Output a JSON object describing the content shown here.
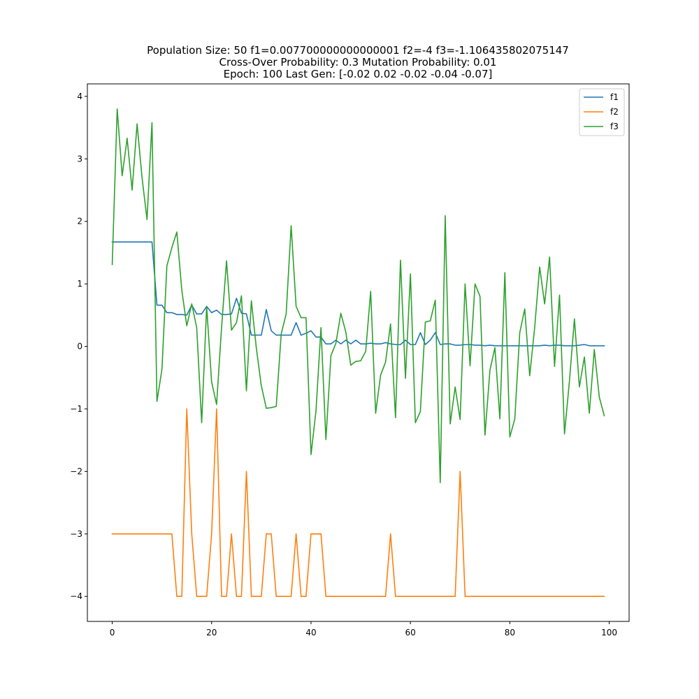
{
  "chart_data": {
    "type": "line",
    "title_lines": [
      "Population Size: 50 f1=0.007700000000000001 f2=-4 f3=-1.106435802075147",
      "Cross-Over Probability: 0.3 Mutation Probability: 0.01",
      "Epoch: 100 Last Gen: [-0.02  0.02 -0.02 -0.04 -0.07]"
    ],
    "xlabel": "",
    "ylabel": "",
    "xlim": [
      -5,
      104
    ],
    "ylim": [
      -4.4,
      4.2
    ],
    "x_ticks": [
      0,
      20,
      40,
      60,
      80,
      100
    ],
    "y_ticks": [
      -4,
      -3,
      -2,
      -1,
      0,
      1,
      2,
      3,
      4
    ],
    "legend_position": "top-right",
    "grid": false,
    "series": [
      {
        "name": "f1",
        "color": "#1f77b4",
        "values": [
          1.67,
          1.67,
          1.67,
          1.67,
          1.67,
          1.67,
          1.67,
          1.67,
          1.67,
          0.66,
          0.66,
          0.54,
          0.54,
          0.51,
          0.51,
          0.5,
          0.66,
          0.52,
          0.52,
          0.64,
          0.54,
          0.58,
          0.51,
          0.51,
          0.52,
          0.77,
          0.53,
          0.52,
          0.18,
          0.18,
          0.18,
          0.59,
          0.25,
          0.18,
          0.18,
          0.18,
          0.18,
          0.38,
          0.18,
          0.21,
          0.25,
          0.15,
          0.15,
          0.04,
          0.04,
          0.1,
          0.04,
          0.1,
          0.04,
          0.1,
          0.04,
          0.04,
          0.05,
          0.04,
          0.04,
          0.06,
          0.04,
          0.03,
          0.03,
          0.1,
          0.03,
          0.03,
          0.22,
          0.03,
          0.1,
          0.22,
          0.03,
          0.04,
          0.04,
          0.02,
          0.02,
          0.03,
          0.03,
          0.02,
          0.02,
          0.01,
          0.02,
          0.01,
          0.01,
          0.01,
          0.01,
          0.01,
          0.01,
          0.01,
          0.01,
          0.01,
          0.01,
          0.02,
          0.01,
          0.02,
          0.02,
          0.01,
          0.01,
          0.01,
          0.02,
          0.03,
          0.01,
          0.01,
          0.01,
          0.01
        ]
      },
      {
        "name": "f2",
        "color": "#ff7f0e",
        "values": [
          -3,
          -3,
          -3,
          -3,
          -3,
          -3,
          -3,
          -3,
          -3,
          -3,
          -3,
          -3,
          -3,
          -4,
          -4,
          -1,
          -3,
          -4,
          -4,
          -4,
          -3,
          -1,
          -4,
          -4,
          -3,
          -4,
          -4,
          -2,
          -4,
          -4,
          -4,
          -3,
          -3,
          -4,
          -4,
          -4,
          -4,
          -3,
          -4,
          -4,
          -3,
          -3,
          -3,
          -4,
          -4,
          -4,
          -4,
          -4,
          -4,
          -4,
          -4,
          -4,
          -4,
          -4,
          -4,
          -4,
          -3,
          -4,
          -4,
          -4,
          -4,
          -4,
          -4,
          -4,
          -4,
          -4,
          -4,
          -4,
          -4,
          -4,
          -2,
          -4,
          -4,
          -4,
          -4,
          -4,
          -4,
          -4,
          -4,
          -4,
          -4,
          -4,
          -4,
          -4,
          -4,
          -4,
          -4,
          -4,
          -4,
          -4,
          -4,
          -4,
          -4,
          -4,
          -4,
          -4,
          -4,
          -4,
          -4,
          -4
        ]
      },
      {
        "name": "f3",
        "color": "#2ca02c",
        "values": [
          1.31,
          3.8,
          2.73,
          3.33,
          2.5,
          3.56,
          2.7,
          2.03,
          3.58,
          -0.88,
          -0.37,
          1.29,
          1.58,
          1.83,
          0.9,
          0.33,
          0.68,
          0.3,
          -1.22,
          0.64,
          -0.57,
          -0.93,
          0.3,
          1.37,
          0.26,
          0.38,
          0.81,
          -0.71,
          0.73,
          -0.03,
          -0.63,
          -0.99,
          -0.98,
          -0.96,
          0.2,
          0.52,
          1.93,
          0.64,
          0.46,
          0.46,
          -1.73,
          -1.03,
          0.3,
          -1.49,
          -0.15,
          0.05,
          0.53,
          0.23,
          -0.3,
          -0.24,
          -0.23,
          -0.08,
          0.88,
          -1.07,
          -0.46,
          -0.25,
          0.36,
          -1.14,
          1.38,
          -0.51,
          1.16,
          -1.22,
          -1.04,
          0.39,
          0.41,
          0.74,
          -2.18,
          2.09,
          -1.24,
          -0.65,
          -1.17,
          1.0,
          -0.31,
          1.0,
          0.8,
          -1.42,
          -0.38,
          -0.02,
          -1.16,
          1.18,
          -1.45,
          -1.16,
          0.22,
          0.6,
          -0.47,
          0.3,
          1.27,
          0.68,
          1.43,
          -0.32,
          0.82,
          -1.4,
          -0.55,
          0.44,
          -0.65,
          -0.17,
          -1.07,
          -0.05,
          -0.81,
          -1.11
        ]
      }
    ]
  }
}
